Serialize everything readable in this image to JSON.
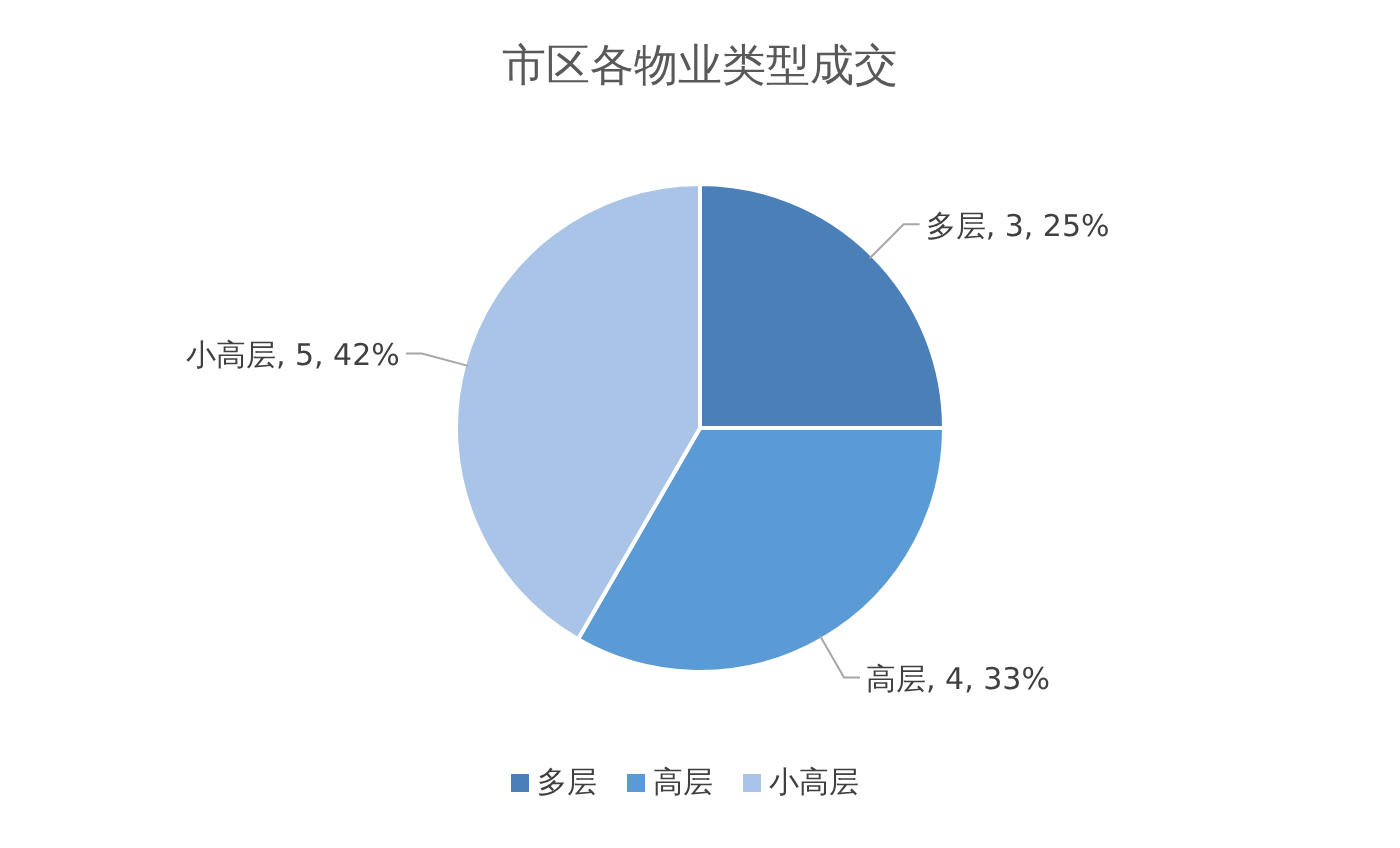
{
  "chart_data": {
    "type": "pie",
    "title": "市区各物业类型成交",
    "categories": [
      "多层",
      "高层",
      "小高层"
    ],
    "values": [
      3,
      4,
      5
    ],
    "value_labels": [
      "多层, 3, 25%",
      "高层, 4, 33%",
      "小高层, 5, 42%"
    ],
    "colors": [
      "#4a7fb8",
      "#5b9bd5",
      "#a9c4e7"
    ],
    "legend": "bottom"
  }
}
